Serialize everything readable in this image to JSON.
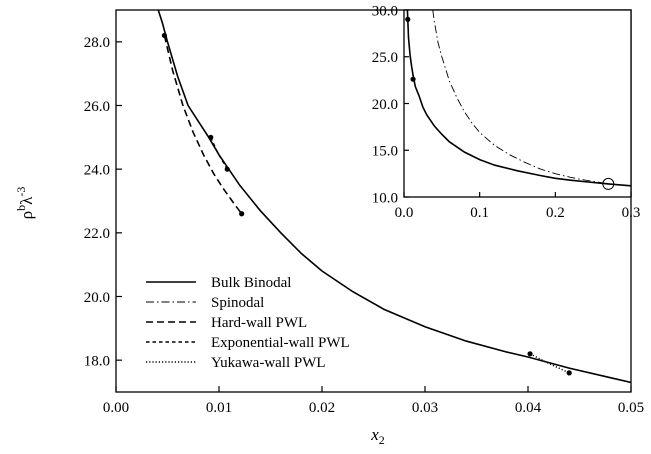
{
  "chart_data": [
    {
      "type": "line",
      "xlabel": "x",
      "xlabel_sub": "2",
      "ylabel_parts": [
        "ρ",
        "b",
        "λ",
        "-3"
      ],
      "xlim": [
        0.0,
        0.05
      ],
      "ylim": [
        17.0,
        29.0
      ],
      "xticks": [
        "0.00",
        "0.01",
        "0.02",
        "0.03",
        "0.04",
        "0.05"
      ],
      "xtick_values": [
        0.0,
        0.01,
        0.02,
        0.03,
        0.04,
        0.05
      ],
      "yticks": [
        "18.0",
        "20.0",
        "22.0",
        "24.0",
        "26.0",
        "28.0"
      ],
      "ytick_values": [
        18.0,
        20.0,
        22.0,
        24.0,
        26.0,
        28.0
      ],
      "legend_position": "bottom-left",
      "series": [
        {
          "name": "Bulk Binodal",
          "style": "solid",
          "x": [
            0.0041,
            0.0045,
            0.005,
            0.006,
            0.007,
            0.008,
            0.009,
            0.01,
            0.012,
            0.014,
            0.016,
            0.018,
            0.02,
            0.023,
            0.026,
            0.03,
            0.034,
            0.038,
            0.04,
            0.044,
            0.048,
            0.05
          ],
          "y": [
            29.0,
            28.6,
            28.0,
            26.9,
            26.0,
            25.5,
            25.0,
            24.45,
            23.5,
            22.7,
            22.0,
            21.35,
            20.8,
            20.15,
            19.6,
            19.05,
            18.6,
            18.25,
            18.1,
            17.75,
            17.45,
            17.3
          ]
        },
        {
          "name": "Spinodal",
          "style": "dashdot",
          "x": [],
          "y": []
        },
        {
          "name": "Hard-wall PWL",
          "style": "dashed",
          "x": [
            0.0047,
            0.0055,
            0.0065,
            0.0075,
            0.0085,
            0.0095,
            0.0105,
            0.0115,
            0.0122
          ],
          "y": [
            28.2,
            27.1,
            26.0,
            25.15,
            24.45,
            23.85,
            23.35,
            22.9,
            22.6
          ]
        },
        {
          "name": "Exponential-wall PWL",
          "style": "short-dashed",
          "x": [
            0.0092,
            0.0099,
            0.0108
          ],
          "y": [
            25.0,
            24.5,
            24.0
          ]
        },
        {
          "name": "Yukawa-wall PWL",
          "style": "dotted",
          "x": [
            0.0402,
            0.042,
            0.044
          ],
          "y": [
            18.2,
            17.9,
            17.6
          ]
        }
      ],
      "markers": [
        {
          "x": 0.0047,
          "y": 28.2
        },
        {
          "x": 0.0092,
          "y": 25.0
        },
        {
          "x": 0.0108,
          "y": 24.0
        },
        {
          "x": 0.0122,
          "y": 22.6
        },
        {
          "x": 0.0402,
          "y": 18.2
        },
        {
          "x": 0.044,
          "y": 17.6
        }
      ]
    },
    {
      "type": "line",
      "xlim": [
        0.0,
        0.3
      ],
      "ylim": [
        10.0,
        30.0
      ],
      "xticks": [
        "0.0",
        "0.1",
        "0.2",
        "0.3"
      ],
      "xtick_values": [
        0.0,
        0.1,
        0.2,
        0.3
      ],
      "yticks": [
        "10.0",
        "15.0",
        "20.0",
        "25.0",
        "30.0"
      ],
      "ytick_values": [
        10.0,
        15.0,
        20.0,
        25.0,
        30.0
      ],
      "series": [
        {
          "name": "Bulk Binodal",
          "style": "solid",
          "x": [
            0.0045,
            0.006,
            0.008,
            0.01,
            0.012,
            0.015,
            0.02,
            0.025,
            0.03,
            0.04,
            0.05,
            0.06,
            0.08,
            0.1,
            0.12,
            0.15,
            0.18,
            0.2,
            0.22,
            0.25,
            0.27,
            0.3
          ],
          "y": [
            30.0,
            27.0,
            25.2,
            24.0,
            23.0,
            21.8,
            20.8,
            19.6,
            18.8,
            17.6,
            16.7,
            15.9,
            14.8,
            14.0,
            13.4,
            12.8,
            12.3,
            12.0,
            11.8,
            11.55,
            11.4,
            11.2
          ]
        },
        {
          "name": "Spinodal",
          "style": "dashdot",
          "x": [
            0.038,
            0.04,
            0.045,
            0.05,
            0.06,
            0.07,
            0.08,
            0.09,
            0.1,
            0.12,
            0.14,
            0.16,
            0.18,
            0.2,
            0.22,
            0.24,
            0.26,
            0.27
          ],
          "y": [
            30.0,
            28.8,
            26.5,
            25.0,
            22.4,
            20.6,
            19.1,
            17.9,
            16.9,
            15.5,
            14.5,
            13.7,
            13.0,
            12.5,
            12.1,
            11.8,
            11.55,
            11.4
          ]
        }
      ],
      "markers": [
        {
          "x": 0.005,
          "y": 29.0
        },
        {
          "x": 0.012,
          "y": 22.6
        }
      ],
      "open_markers": [
        {
          "x": 0.27,
          "y": 11.4
        }
      ]
    }
  ]
}
